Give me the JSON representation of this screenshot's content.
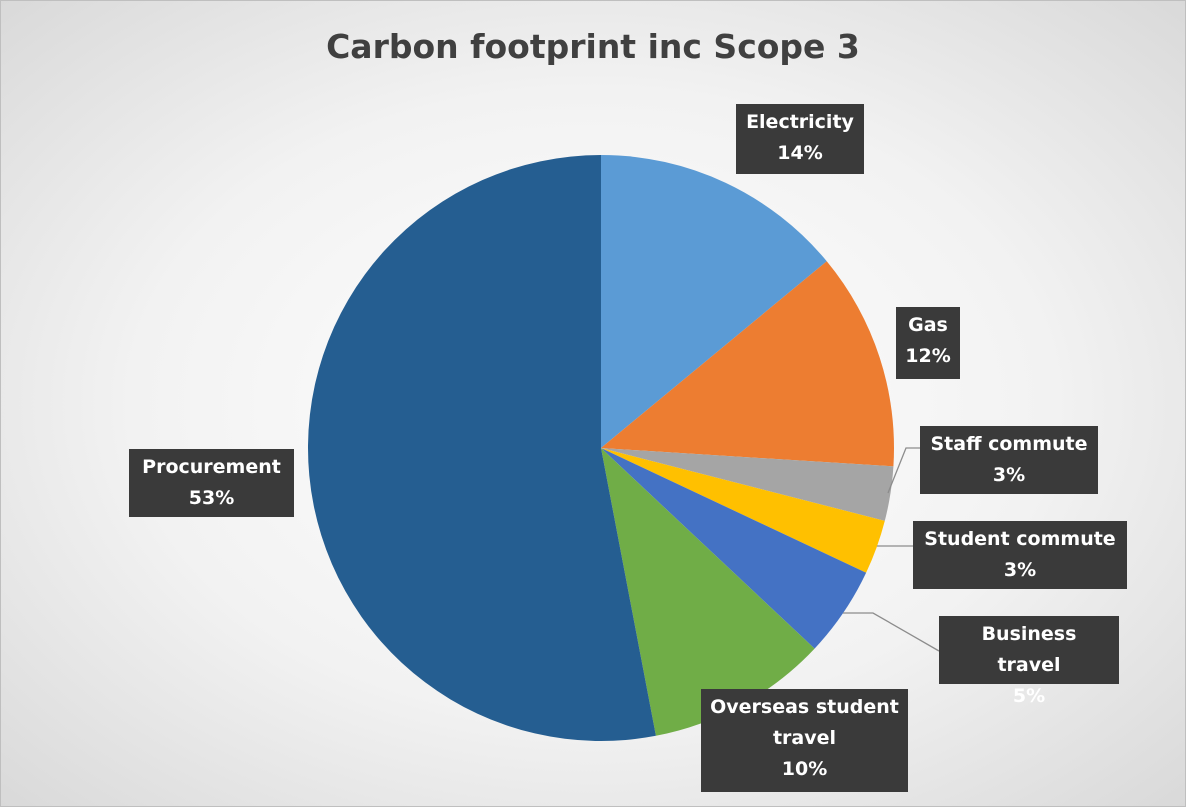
{
  "chart_data": {
    "type": "pie",
    "title": "Carbon footprint inc Scope 3",
    "categories": [
      "Electricity",
      "Gas",
      "Staff commute",
      "Student commute",
      "Business travel",
      "Overseas student travel",
      "Procurement"
    ],
    "values": [
      14,
      12,
      3,
      3,
      5,
      10,
      53
    ],
    "value_labels": [
      "14%",
      "12%",
      "3%",
      "3%",
      "5%",
      "10%",
      "53%"
    ],
    "colors": [
      "#5b9bd5",
      "#ed7d31",
      "#a5a5a5",
      "#ffc000",
      "#4472c4",
      "#70ad47",
      "#255e91"
    ]
  }
}
